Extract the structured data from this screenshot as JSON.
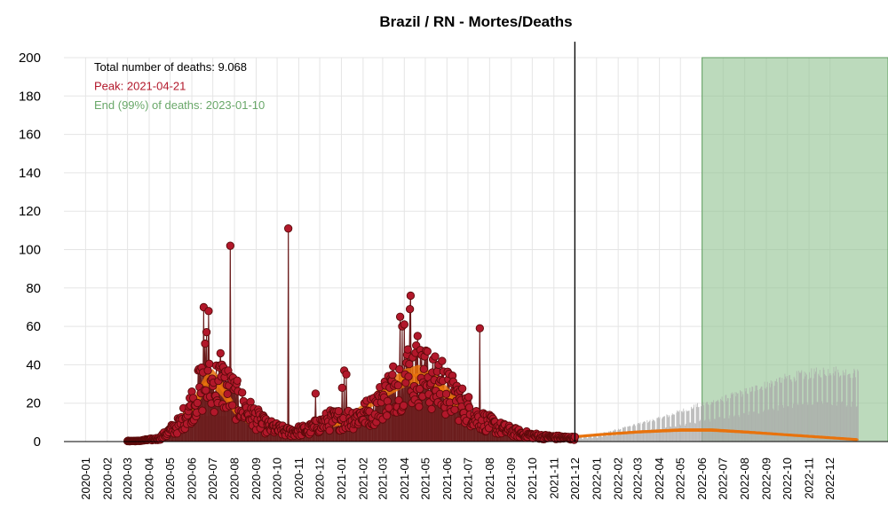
{
  "chart_data": {
    "type": "line",
    "title": "Brazil / RN - Mortes/Deaths",
    "xlabel": "",
    "ylabel": "",
    "ylim": [
      0,
      200
    ],
    "y_ticks": [
      "0",
      "20",
      "40",
      "60",
      "80",
      "100",
      "120",
      "140",
      "160",
      "180",
      "200"
    ],
    "x_range": [
      "2019-12-01",
      "2023-02-22"
    ],
    "x_tick_labels": [
      "2020-01",
      "2020-02",
      "2020-03",
      "2020-04",
      "2020-05",
      "2020-06",
      "2020-07",
      "2020-08",
      "2020-09",
      "2020-10",
      "2020-11",
      "2020-12",
      "2021-01",
      "2021-02",
      "2021-03",
      "2021-04",
      "2021-05",
      "2021-06",
      "2021-07",
      "2021-08",
      "2021-09",
      "2021-10",
      "2021-11",
      "2021-12",
      "2022-01",
      "2022-02",
      "2022-03",
      "2022-04",
      "2022-05",
      "2022-06",
      "2022-07",
      "2022-08",
      "2022-09",
      "2022-10",
      "2022-11",
      "2022-12"
    ],
    "annotations": [
      {
        "text": "Total number of deaths: 9.068",
        "color": "#000000"
      },
      {
        "text": "Peak: 2021-04-21",
        "color": "#b2182b"
      },
      {
        "text": "End (99%) of deaths: 2023-01-10",
        "color": "#6aa86a"
      }
    ],
    "today_line": "2021-12-01",
    "end_region": {
      "start": "2022-06-01",
      "end": "2023-02-22",
      "y_top": 200,
      "color": "#8fc18f"
    },
    "colors": {
      "observed": "#b2182b",
      "observed_edge": "#5a0a0a",
      "observed_line": "#6b1d1d",
      "model": "#e8720c",
      "projection_bars": "#a9a9a9",
      "grid": "#e5e5e5"
    },
    "observed_daily_deaths": {
      "start": "2020-03-01",
      "end": "2021-12-01",
      "monthly_typical": [
        {
          "month": "2020-03",
          "value": 0.3
        },
        {
          "month": "2020-04",
          "value": 1.5
        },
        {
          "month": "2020-05",
          "value": 9
        },
        {
          "month": "2020-06",
          "value": 28
        },
        {
          "month": "2020-07",
          "value": 30
        },
        {
          "month": "2020-08",
          "value": 17
        },
        {
          "month": "2020-09",
          "value": 8
        },
        {
          "month": "2020-10",
          "value": 5
        },
        {
          "month": "2020-11",
          "value": 6
        },
        {
          "month": "2020-12",
          "value": 11
        },
        {
          "month": "2021-01",
          "value": 12
        },
        {
          "month": "2021-02",
          "value": 16
        },
        {
          "month": "2021-03",
          "value": 28
        },
        {
          "month": "2021-04",
          "value": 36
        },
        {
          "month": "2021-05",
          "value": 30
        },
        {
          "month": "2021-06",
          "value": 22
        },
        {
          "month": "2021-07",
          "value": 12
        },
        {
          "month": "2021-08",
          "value": 7
        },
        {
          "month": "2021-09",
          "value": 4
        },
        {
          "month": "2021-10",
          "value": 2.5
        },
        {
          "month": "2021-11",
          "value": 2
        },
        {
          "month": "2021-12",
          "value": 1.5
        }
      ],
      "outliers": [
        {
          "date": "2020-06-10",
          "value": 37
        },
        {
          "date": "2020-06-18",
          "value": 70
        },
        {
          "date": "2020-06-22",
          "value": 57
        },
        {
          "date": "2020-06-25",
          "value": 68
        },
        {
          "date": "2020-06-20",
          "value": 51
        },
        {
          "date": "2020-07-12",
          "value": 46
        },
        {
          "date": "2020-07-26",
          "value": 102
        },
        {
          "date": "2020-07-28",
          "value": 32
        },
        {
          "date": "2020-10-17",
          "value": 111
        },
        {
          "date": "2020-11-25",
          "value": 25
        },
        {
          "date": "2021-01-02",
          "value": 28
        },
        {
          "date": "2021-01-05",
          "value": 37
        },
        {
          "date": "2021-01-08",
          "value": 35
        },
        {
          "date": "2021-03-26",
          "value": 65
        },
        {
          "date": "2021-03-29",
          "value": 60
        },
        {
          "date": "2021-04-01",
          "value": 61
        },
        {
          "date": "2021-04-06",
          "value": 48
        },
        {
          "date": "2021-04-10",
          "value": 76
        },
        {
          "date": "2021-04-09",
          "value": 69
        },
        {
          "date": "2021-04-20",
          "value": 55
        },
        {
          "date": "2021-04-26",
          "value": 45
        },
        {
          "date": "2021-05-04",
          "value": 47
        },
        {
          "date": "2021-05-20",
          "value": 40
        },
        {
          "date": "2021-05-25",
          "value": 42
        },
        {
          "date": "2021-06-15",
          "value": 29
        },
        {
          "date": "2021-07-18",
          "value": 59
        }
      ]
    },
    "weekly_bars": [
      {
        "start": "2020-06-10",
        "end": "2020-07-20",
        "value": 13
      },
      {
        "start": "2021-03-15",
        "end": "2021-05-25",
        "value": 18
      }
    ],
    "model_curve": {
      "name": "",
      "points": [
        {
          "date": "2020-03-01",
          "value": 0
        },
        {
          "date": "2020-04-01",
          "value": 1
        },
        {
          "date": "2020-05-01",
          "value": 5
        },
        {
          "date": "2020-06-01",
          "value": 18
        },
        {
          "date": "2020-06-20",
          "value": 30
        },
        {
          "date": "2020-07-01",
          "value": 33
        },
        {
          "date": "2020-07-15",
          "value": 27
        },
        {
          "date": "2020-08-01",
          "value": 17
        },
        {
          "date": "2020-09-01",
          "value": 7
        },
        {
          "date": "2020-10-01",
          "value": 4
        },
        {
          "date": "2020-11-01",
          "value": 5
        },
        {
          "date": "2020-12-01",
          "value": 7
        },
        {
          "date": "2021-01-01",
          "value": 10
        },
        {
          "date": "2021-02-01",
          "value": 17
        },
        {
          "date": "2021-03-01",
          "value": 26
        },
        {
          "date": "2021-04-01",
          "value": 33
        },
        {
          "date": "2021-04-21",
          "value": 35
        },
        {
          "date": "2021-05-15",
          "value": 31
        },
        {
          "date": "2021-06-15",
          "value": 20
        },
        {
          "date": "2021-07-15",
          "value": 11
        },
        {
          "date": "2021-08-15",
          "value": 6
        },
        {
          "date": "2021-09-15",
          "value": 4
        },
        {
          "date": "2021-10-15",
          "value": 3
        },
        {
          "date": "2021-11-15",
          "value": 2.5
        },
        {
          "date": "2021-12-01",
          "value": 2.5
        },
        {
          "date": "2022-01-01",
          "value": 3.5
        },
        {
          "date": "2022-03-01",
          "value": 5
        },
        {
          "date": "2022-05-01",
          "value": 6
        },
        {
          "date": "2022-06-15",
          "value": 6
        },
        {
          "date": "2022-08-01",
          "value": 5
        },
        {
          "date": "2022-10-01",
          "value": 3.5
        },
        {
          "date": "2022-12-01",
          "value": 2
        },
        {
          "date": "2023-01-10",
          "value": 1
        }
      ]
    },
    "projection_bars": {
      "start": "2021-12-01",
      "end": "2023-01-10",
      "points": [
        {
          "date": "2021-12-01",
          "value": 2
        },
        {
          "date": "2022-01-01",
          "value": 4
        },
        {
          "date": "2022-02-01",
          "value": 7
        },
        {
          "date": "2022-03-01",
          "value": 10
        },
        {
          "date": "2022-04-01",
          "value": 13
        },
        {
          "date": "2022-05-01",
          "value": 17
        },
        {
          "date": "2022-06-01",
          "value": 21
        },
        {
          "date": "2022-07-01",
          "value": 24
        },
        {
          "date": "2022-08-01",
          "value": 28
        },
        {
          "date": "2022-09-01",
          "value": 32
        },
        {
          "date": "2022-10-01",
          "value": 36
        },
        {
          "date": "2022-11-01",
          "value": 38
        },
        {
          "date": "2022-12-01",
          "value": 40
        },
        {
          "date": "2023-01-10",
          "value": 38
        }
      ]
    }
  }
}
